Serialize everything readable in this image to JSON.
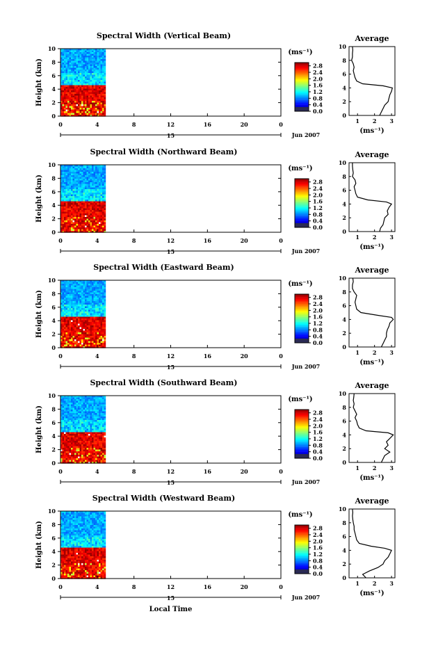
{
  "chart_data": [
    {
      "type": "heatmap",
      "title": "Spectral Width (Vertical Beam)",
      "ylabel": "Height (km)",
      "xlim": [
        0,
        24
      ],
      "ylim": [
        0,
        10
      ],
      "x_tick_labels": [
        "0",
        "4",
        "8",
        "12",
        "16",
        "20",
        "0"
      ],
      "y_tick_labels": [
        "0",
        "2",
        "4",
        "6",
        "8",
        "10"
      ],
      "data_time_range": [
        0,
        4.8
      ],
      "date_label": "15",
      "month_label": "Jun 2007",
      "colorbar": {
        "unit": "(ms⁻¹)",
        "ticks": [
          "0.0",
          "0.4",
          "0.8",
          "1.2",
          "1.6",
          "2.0",
          "2.4",
          "2.8"
        ],
        "range": [
          0,
          3
        ]
      },
      "average": {
        "title": "Average",
        "xlabel": "(ms⁻¹)",
        "xlim": [
          0.5,
          3.2
        ],
        "x_tick_labels": [
          "1",
          "2",
          "3"
        ],
        "ylim": [
          0,
          10
        ],
        "y_tick_labels": [
          "0",
          "2",
          "4",
          "6",
          "8",
          "10"
        ],
        "height": [
          0,
          0.5,
          1,
          1.5,
          2,
          2.5,
          3,
          3.5,
          4,
          4.3,
          4.6,
          5,
          5.5,
          6,
          6.5,
          7,
          7.5,
          8,
          8.5,
          9,
          9.5,
          10
        ],
        "width": [
          2.3,
          2.4,
          2.5,
          2.6,
          2.8,
          2.85,
          2.9,
          3.0,
          3.05,
          2.5,
          1.3,
          0.95,
          0.85,
          0.8,
          0.75,
          0.8,
          0.75,
          0.65,
          0.7,
          0.7,
          0.72,
          0.7
        ]
      }
    },
    {
      "type": "heatmap",
      "title": "Spectral Width (Northward Beam)",
      "ylabel": "Height (km)",
      "xlim": [
        0,
        24
      ],
      "ylim": [
        0,
        10
      ],
      "x_tick_labels": [
        "0",
        "4",
        "8",
        "12",
        "16",
        "20",
        "0"
      ],
      "y_tick_labels": [
        "0",
        "2",
        "4",
        "6",
        "8",
        "10"
      ],
      "data_time_range": [
        0,
        4.8
      ],
      "date_label": "15",
      "month_label": "Jun 2007",
      "colorbar": {
        "unit": "(ms⁻¹)",
        "ticks": [
          "0.0",
          "0.4",
          "0.8",
          "1.2",
          "1.6",
          "2.0",
          "2.4",
          "2.8"
        ],
        "range": [
          0,
          3
        ]
      },
      "average": {
        "title": "Average",
        "xlabel": "(ms⁻¹)",
        "xlim": [
          0.5,
          3.2
        ],
        "x_tick_labels": [
          "1",
          "2",
          "3"
        ],
        "ylim": [
          0,
          10
        ],
        "y_tick_labels": [
          "0",
          "2",
          "4",
          "6",
          "8",
          "10"
        ],
        "height": [
          0,
          0.5,
          1,
          1.5,
          2,
          2.5,
          3,
          3.5,
          4,
          4.3,
          4.6,
          5,
          5.5,
          6,
          6.5,
          7,
          7.5,
          8,
          8.5,
          9,
          9.5,
          10
        ],
        "width": [
          2.3,
          2.35,
          2.5,
          2.55,
          2.6,
          2.8,
          2.75,
          2.85,
          3.0,
          2.7,
          1.6,
          1.0,
          0.9,
          0.85,
          0.8,
          0.9,
          0.85,
          0.7,
          0.75,
          0.72,
          0.7,
          0.7
        ]
      }
    },
    {
      "type": "heatmap",
      "title": "Spectral Width (Eastward Beam)",
      "ylabel": "Height (km)",
      "xlim": [
        0,
        24
      ],
      "ylim": [
        0,
        10
      ],
      "x_tick_labels": [
        "0",
        "4",
        "8",
        "12",
        "16",
        "20",
        "0"
      ],
      "y_tick_labels": [
        "0",
        "2",
        "4",
        "6",
        "8",
        "10"
      ],
      "data_time_range": [
        0,
        4.8
      ],
      "date_label": "15",
      "month_label": "Jun 2007",
      "colorbar": {
        "unit": "(ms⁻¹)",
        "ticks": [
          "0.0",
          "0.4",
          "0.8",
          "1.2",
          "1.6",
          "2.0",
          "2.4",
          "2.8"
        ],
        "range": [
          0,
          3
        ]
      },
      "average": {
        "title": "Average",
        "xlabel": "(ms⁻¹)",
        "xlim": [
          0.5,
          3.2
        ],
        "x_tick_labels": [
          "1",
          "2",
          "3"
        ],
        "ylim": [
          0,
          10
        ],
        "y_tick_labels": [
          "0",
          "2",
          "4",
          "6",
          "8",
          "10"
        ],
        "height": [
          0,
          0.5,
          1,
          1.5,
          2,
          2.5,
          3,
          3.5,
          4,
          4.3,
          4.6,
          5,
          5.5,
          6,
          6.5,
          7,
          7.5,
          8,
          8.5,
          9,
          9.5,
          10
        ],
        "width": [
          2.4,
          2.5,
          2.6,
          2.7,
          2.7,
          2.75,
          2.85,
          2.9,
          3.1,
          3.0,
          2.2,
          1.2,
          0.95,
          0.9,
          0.85,
          0.9,
          0.95,
          0.8,
          0.7,
          0.7,
          0.75,
          0.72
        ]
      }
    },
    {
      "type": "heatmap",
      "title": "Spectral Width (Southward Beam)",
      "ylabel": "Height (km)",
      "xlim": [
        0,
        24
      ],
      "ylim": [
        0,
        10
      ],
      "x_tick_labels": [
        "0",
        "4",
        "8",
        "12",
        "16",
        "20",
        "0"
      ],
      "y_tick_labels": [
        "0",
        "2",
        "4",
        "6",
        "8",
        "10"
      ],
      "data_time_range": [
        0,
        4.8
      ],
      "date_label": "15",
      "month_label": "Jun 2007",
      "colorbar": {
        "unit": "(ms⁻¹)",
        "ticks": [
          "0.0",
          "0.4",
          "0.8",
          "1.2",
          "1.6",
          "2.0",
          "2.4",
          "2.8"
        ],
        "range": [
          0,
          3
        ]
      },
      "average": {
        "title": "Average",
        "xlabel": "(ms⁻¹)",
        "xlim": [
          0.5,
          3.2
        ],
        "x_tick_labels": [
          "1",
          "2",
          "3"
        ],
        "ylim": [
          0,
          10
        ],
        "y_tick_labels": [
          "0",
          "2",
          "4",
          "6",
          "8",
          "10"
        ],
        "height": [
          0,
          0.5,
          1,
          1.5,
          2,
          2.5,
          3,
          3.5,
          4,
          4.3,
          4.6,
          5,
          5.5,
          6,
          6.5,
          7,
          7.5,
          8,
          8.5,
          9,
          9.5,
          10
        ],
        "width": [
          2.4,
          2.5,
          2.6,
          2.9,
          2.6,
          2.8,
          2.7,
          2.9,
          3.1,
          2.8,
          1.5,
          1.1,
          1.0,
          0.95,
          0.85,
          0.95,
          0.85,
          0.75,
          0.8,
          0.75,
          0.78,
          0.8
        ]
      }
    },
    {
      "type": "heatmap",
      "title": "Spectral Width (Westward Beam)",
      "ylabel": "Height (km)",
      "xlabel": "Local Time",
      "xlim": [
        0,
        24
      ],
      "ylim": [
        0,
        10
      ],
      "x_tick_labels": [
        "0",
        "4",
        "8",
        "12",
        "16",
        "20",
        "0"
      ],
      "y_tick_labels": [
        "0",
        "2",
        "4",
        "6",
        "8",
        "10"
      ],
      "data_time_range": [
        0,
        4.8
      ],
      "date_label": "15",
      "month_label": "Jun 2007",
      "colorbar": {
        "unit": "(ms⁻¹)",
        "ticks": [
          "0.0",
          "0.4",
          "0.8",
          "1.2",
          "1.6",
          "2.0",
          "2.4",
          "2.8"
        ],
        "range": [
          0,
          3
        ]
      },
      "average": {
        "title": "Average",
        "xlabel": "(ms⁻¹)",
        "xlim": [
          0.5,
          3.2
        ],
        "x_tick_labels": [
          "1",
          "2",
          "3"
        ],
        "ylim": [
          0,
          10
        ],
        "y_tick_labels": [
          "0",
          "2",
          "4",
          "6",
          "8",
          "10"
        ],
        "height": [
          0,
          0.5,
          1,
          1.5,
          2,
          2.5,
          3,
          3.5,
          4,
          4.3,
          4.6,
          5,
          5.5,
          6,
          6.5,
          7,
          7.5,
          8,
          8.5,
          9,
          9.5,
          10
        ],
        "width": [
          1.5,
          1.3,
          1.7,
          2.2,
          2.5,
          2.6,
          2.8,
          2.9,
          3.0,
          2.6,
          1.8,
          1.1,
          0.95,
          0.9,
          0.85,
          0.8,
          0.8,
          0.75,
          0.72,
          0.7,
          0.72,
          0.7
        ]
      }
    }
  ]
}
